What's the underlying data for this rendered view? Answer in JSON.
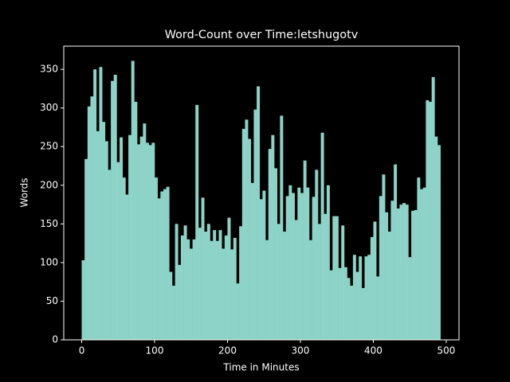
{
  "chart_data": {
    "type": "bar",
    "title": "Word-Count over Time:letshugotv",
    "xlabel": "Time in Minutes",
    "ylabel": "Words",
    "color": "#8dd3c7",
    "x": [
      0,
      4,
      8,
      12,
      16,
      20,
      24,
      28,
      32,
      36,
      40,
      44,
      48,
      52,
      56,
      60,
      64,
      68,
      72,
      76,
      80,
      84,
      88,
      92,
      96,
      100,
      104,
      108,
      112,
      116,
      120,
      124,
      128,
      132,
      136,
      140,
      144,
      148,
      152,
      156,
      160,
      164,
      168,
      172,
      176,
      180,
      184,
      188,
      192,
      196,
      200,
      204,
      208,
      212,
      216,
      220,
      224,
      228,
      232,
      236,
      240,
      244,
      248,
      252,
      256,
      260,
      264,
      268,
      272,
      276,
      280,
      284,
      288,
      292,
      296,
      300,
      304,
      308,
      312,
      316,
      320,
      324,
      328,
      332,
      336,
      340,
      344,
      348,
      352,
      356,
      360,
      364,
      368,
      372,
      376,
      380,
      384,
      388,
      392,
      396,
      400,
      404,
      408,
      412,
      416,
      420,
      424,
      428,
      432,
      436,
      440,
      444,
      448,
      452,
      456,
      460,
      464,
      468,
      472,
      476,
      480,
      484,
      488
    ],
    "values": [
      103,
      234,
      302,
      315,
      350,
      270,
      353,
      282,
      257,
      220,
      335,
      343,
      230,
      262,
      210,
      188,
      265,
      361,
      308,
      253,
      263,
      280,
      255,
      252,
      255,
      210,
      183,
      192,
      195,
      198,
      88,
      70,
      150,
      97,
      135,
      148,
      130,
      118,
      130,
      304,
      145,
      184,
      140,
      150,
      128,
      142,
      128,
      142,
      118,
      135,
      158,
      117,
      132,
      73,
      147,
      273,
      285,
      260,
      203,
      298,
      328,
      182,
      193,
      129,
      247,
      265,
      222,
      150,
      290,
      140,
      186,
      200,
      190,
      155,
      197,
      190,
      232,
      197,
      129,
      185,
      220,
      150,
      268,
      163,
      200,
      90,
      160,
      160,
      93,
      148,
      94,
      80,
      70,
      110,
      88,
      108,
      67,
      108,
      110,
      133,
      153,
      82,
      186,
      214,
      165,
      140,
      180,
      227,
      170,
      175,
      177,
      175,
      107,
      167,
      168,
      210,
      195,
      197,
      310,
      308,
      340,
      263,
      252
    ],
    "xlim": [
      -24.6,
      517.5
    ],
    "ylim": [
      0,
      380
    ],
    "xticks": [
      0,
      100,
      200,
      300,
      400,
      500
    ],
    "yticks": [
      0,
      50,
      100,
      150,
      200,
      250,
      300,
      350
    ]
  }
}
